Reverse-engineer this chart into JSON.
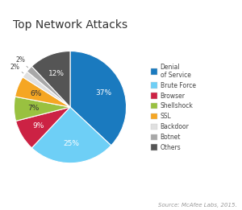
{
  "title": "Top Network Attacks",
  "source": "Source: McAfee Labs, 2015.",
  "values": [
    37,
    25,
    9,
    7,
    6,
    2,
    2,
    12
  ],
  "colors": [
    "#1a7abf",
    "#6ecff6",
    "#cc2244",
    "#99c140",
    "#f5a623",
    "#e0e0e0",
    "#a8a8a8",
    "#555555"
  ],
  "pct_labels": [
    "37%",
    "25%",
    "9%",
    "7%",
    "6%",
    "2%",
    "2%",
    "12%"
  ],
  "legend_labels": [
    "Denial\nof Service",
    "Brute Force",
    "Browser",
    "Shellshock",
    "SSL",
    "Backdoor",
    "Botnet",
    "Others"
  ],
  "background_color": "#ffffff",
  "title_fontsize": 10,
  "source_fontsize": 5.0
}
